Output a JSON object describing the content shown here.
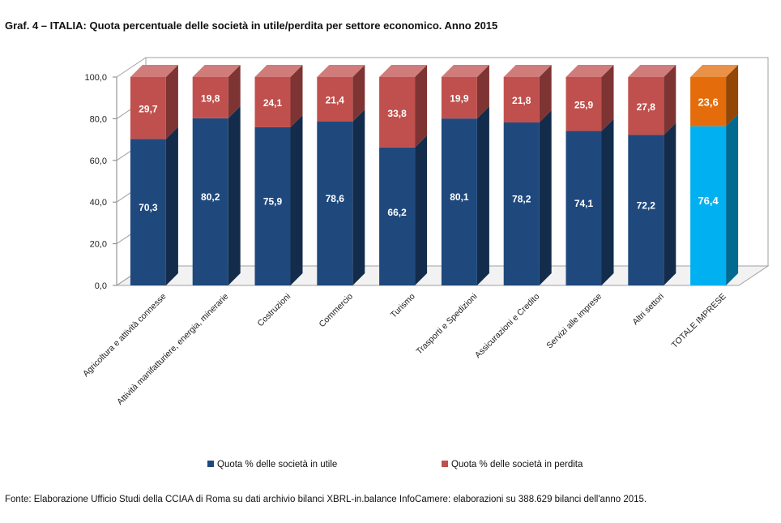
{
  "title": "Graf. 4 – ITALIA: Quota percentuale delle società in utile/perdita per settore economico. Anno 2015",
  "source": "Fonte: Elaborazione Ufficio Studi della CCIAA di Roma su dati archivio bilanci XBRL-in.balance InfoCamere: elaborazioni su 388.629 bilanci dell'anno 2015.",
  "colors": {
    "utile": "#1F497D",
    "perdita": "#C0504D",
    "totale_utile": "#00B0F0",
    "totale_perdita": "#E46C0A"
  },
  "chart_data": {
    "type": "bar",
    "stacked": true,
    "three_d": true,
    "categories": [
      "Agricoltura e attività connesse",
      "Attività manifatturiere, energia, minerarie",
      "Costruzioni",
      "Commercio",
      "Turismo",
      "Trasporti e Spedizioni",
      "Assicurazioni e Credito",
      "Servizi alle imprese",
      "Altri settori",
      "TOTALE IMPRESE"
    ],
    "series": [
      {
        "name": "Quota % delle società in utile",
        "values": [
          70.3,
          80.2,
          75.9,
          78.6,
          66.2,
          80.1,
          78.2,
          74.1,
          72.2,
          76.4
        ]
      },
      {
        "name": "Quota % delle società in perdita",
        "values": [
          29.7,
          19.8,
          24.1,
          21.4,
          33.8,
          19.9,
          21.8,
          25.9,
          27.8,
          23.6
        ]
      }
    ],
    "data_labels": {
      "utile": [
        "70,3",
        "80,2",
        "75,9",
        "78,6",
        "66,2",
        "80,1",
        "78,2",
        "74,1",
        "72,2",
        "76,4"
      ],
      "perdita": [
        "29,7",
        "19,8",
        "24,1",
        "21,4",
        "33,8",
        "19,9",
        "21,8",
        "25,9",
        "27,8",
        "23,6"
      ]
    },
    "y_ticks": [
      "0,0",
      "20,0",
      "40,0",
      "60,0",
      "80,0",
      "100,0"
    ],
    "ylim": [
      0,
      100
    ],
    "xlabel": "",
    "ylabel": "",
    "legend": "bottom",
    "grid": false
  }
}
